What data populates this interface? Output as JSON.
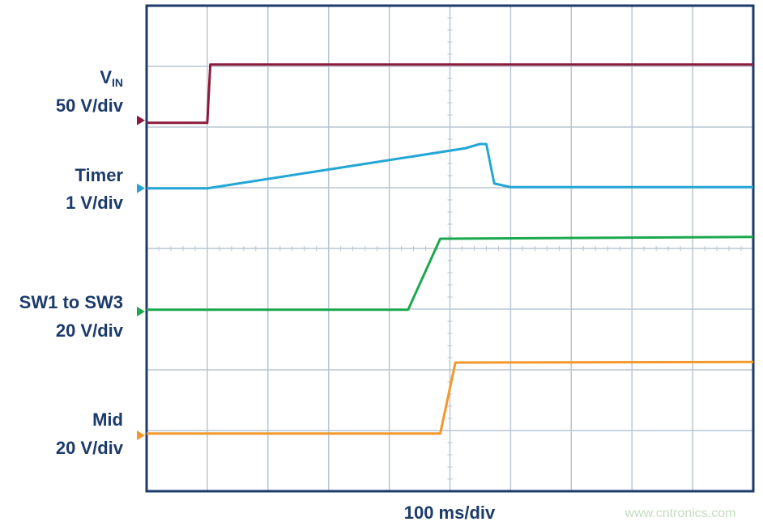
{
  "chart_data": {
    "type": "line",
    "x_label": "100 ms/div",
    "watermark": "www.cntronics.com",
    "xlim": [
      0,
      10
    ],
    "ylim": [
      0,
      8
    ],
    "xticks": [
      0,
      1,
      2,
      3,
      4,
      5,
      6,
      7,
      8,
      9,
      10
    ],
    "yticks": [
      0,
      1,
      2,
      3,
      4,
      5,
      6,
      7,
      8
    ],
    "grid": true,
    "series": [
      {
        "name": "V",
        "name_subscript": "IN",
        "scale": "50 V/div",
        "color": "#8c1a3c",
        "marker": 6.11,
        "x": [
          0,
          1.0,
          1.05,
          10
        ],
        "values": [
          6.07,
          6.07,
          7.03,
          7.03
        ]
      },
      {
        "name": "Timer",
        "scale": "1 V/div",
        "color": "#22a6d6",
        "marker": 4.99,
        "x": [
          0,
          1.0,
          5.25,
          5.49,
          5.6,
          5.73,
          6.0,
          10
        ],
        "values": [
          4.99,
          4.99,
          5.65,
          5.72,
          5.72,
          5.07,
          5.01,
          5.01
        ]
      },
      {
        "name": "SW1 to SW3",
        "scale": "20 V/div",
        "color": "#1ba84e",
        "marker": 2.96,
        "x": [
          0,
          4.31,
          4.84,
          10
        ],
        "values": [
          2.99,
          2.99,
          4.16,
          4.19
        ]
      },
      {
        "name": "Mid",
        "scale": "20 V/div",
        "color": "#f3982a",
        "marker": 0.92,
        "x": [
          0,
          4.84,
          5.09,
          10
        ],
        "values": [
          0.95,
          0.95,
          2.12,
          2.13
        ]
      }
    ]
  }
}
